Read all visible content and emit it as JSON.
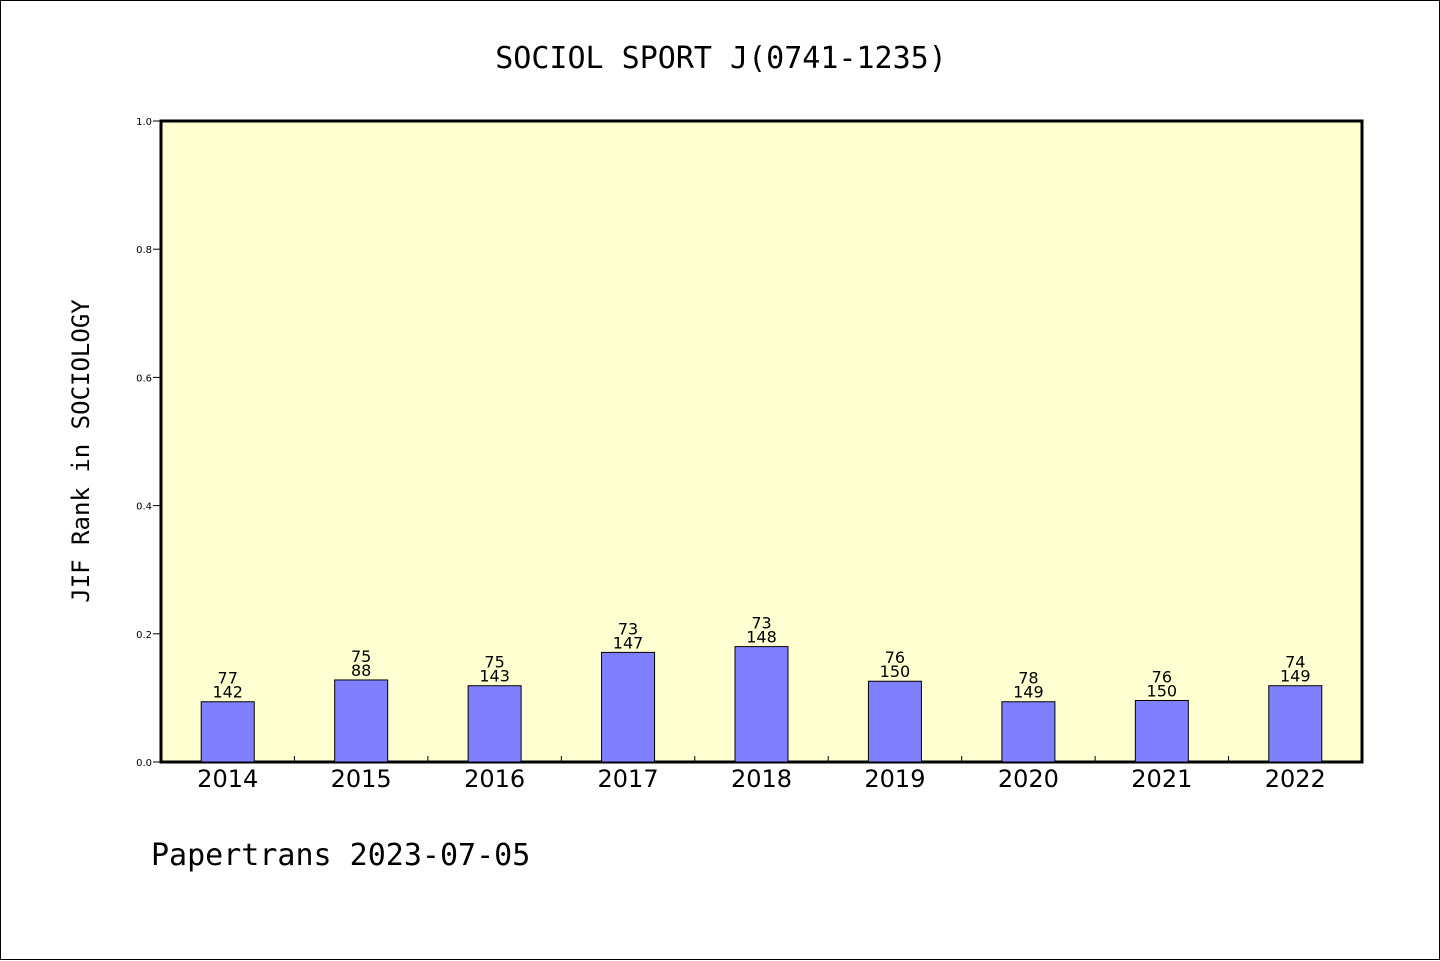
{
  "chart_data": {
    "type": "bar",
    "title": "SOCIOL SPORT J(0741-1235)",
    "ylabel": "JIF Rank in SOCIOLOGY",
    "xlabel": "",
    "ylim": [
      0,
      1.0
    ],
    "yticks": [
      "0.0",
      "0.2",
      "0.4",
      "0.6",
      "0.8",
      "1.0"
    ],
    "categories": [
      "2014",
      "2015",
      "2016",
      "2017",
      "2018",
      "2019",
      "2020",
      "2021",
      "2022"
    ],
    "values": [
      0.094,
      0.128,
      0.119,
      0.171,
      0.18,
      0.126,
      0.094,
      0.096,
      0.119
    ],
    "rank": [
      "77",
      "75",
      "75",
      "73",
      "73",
      "76",
      "78",
      "76",
      "74"
    ],
    "total": [
      "142",
      "88",
      "143",
      "147",
      "148",
      "150",
      "149",
      "150",
      "149"
    ],
    "grid": false,
    "colors": {
      "plot_background": "#ffffd2",
      "bar_fill": "#8080ff",
      "bar_stroke": "#000000"
    }
  },
  "footer": "Papertrans 2023-07-05"
}
